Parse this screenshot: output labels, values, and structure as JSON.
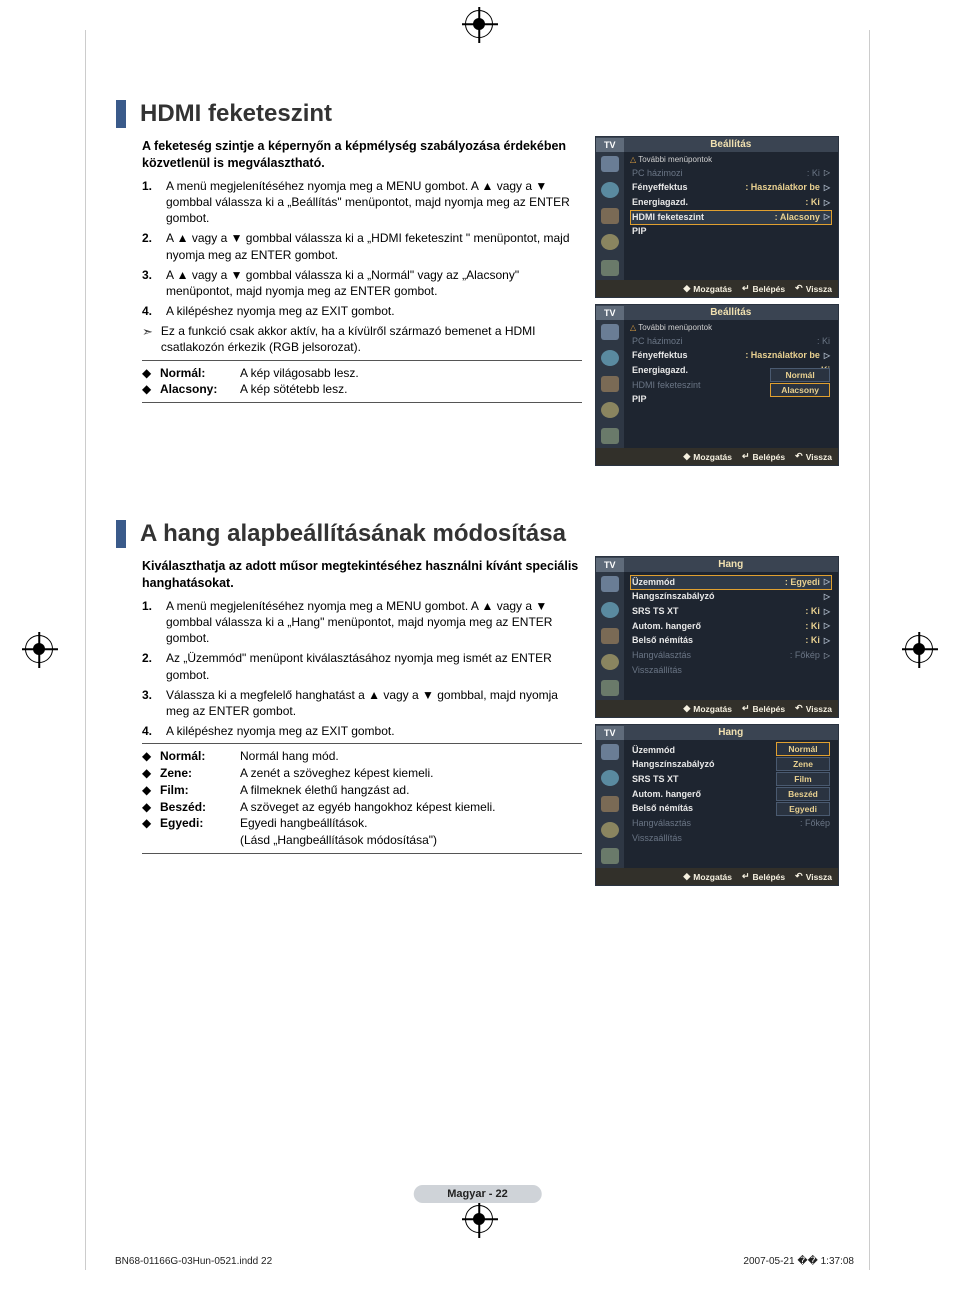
{
  "section1": {
    "title": "HDMI feketeszint",
    "intro": "A feketeség szintje a képernyőn a képmélység szabályozása érdekében közvetlenül is megválasztható.",
    "steps": [
      "A menü megjelenítéséhez nyomja meg a MENU gombot. A ▲ vagy a ▼ gombbal válassza ki a „Beállítás\" menüpontot, majd nyomja meg az ENTER gombot.",
      "A ▲ vagy a ▼ gombbal válassza ki a „HDMI feketeszint \" menüpontot, majd nyomja meg az ENTER gombot.",
      "A ▲ vagy a ▼ gombbal válassza ki a „Normál\" vagy az „Alacsony\" menüpontot, majd nyomja meg az ENTER gombot.",
      "A kilépéshez nyomja meg az EXIT gombot."
    ],
    "note": "Ez a funkció csak akkor aktív, ha a kívülről származó bemenet a HDMI csatlakozón érkezik (RGB jelsorozat).",
    "box": [
      {
        "label": "Normál:",
        "text": "A kép világosabb lesz."
      },
      {
        "label": "Alacsony:",
        "text": "A kép sötétebb lesz."
      }
    ]
  },
  "section2": {
    "title": "A hang alapbeállításának módosítása",
    "intro": "Kiválaszthatja az adott műsor megtekintéséhez használni kívánt speciális hanghatásokat.",
    "steps": [
      "A menü megjelenítéséhez nyomja meg a MENU gombot. A ▲ vagy a ▼ gombbal válassza ki a „Hang\" menüpontot, majd nyomja meg az ENTER gombot.",
      "Az „Üzemmód\" menüpont kiválasztásához nyomja meg ismét az ENTER gombot.",
      "Válassza ki a megfelelő hanghatást a ▲ vagy a ▼ gombbal, majd nyomja meg az ENTER gombot.",
      "A kilépéshez nyomja meg az EXIT gombot."
    ],
    "box": [
      {
        "label": "Normál:",
        "text": "Normál hang mód."
      },
      {
        "label": "Zene:",
        "text": "A zenét a szöveghez képest kiemeli."
      },
      {
        "label": "Film:",
        "text": "A filmeknek élethű hangzást ad."
      },
      {
        "label": "Beszéd:",
        "text": "A szöveget az egyéb hangokhoz képest kiemeli."
      },
      {
        "label": "Egyedi:",
        "text": "Egyedi hangbeállítások."
      }
    ],
    "box_extra": "(Lásd „Hangbeállítások módosítása\")"
  },
  "osd": {
    "tv": "TV",
    "setup_title": "Beállítás",
    "sound_title": "Hang",
    "more": "További menüpontok",
    "setup_items1": [
      {
        "k": "PC házimozi",
        "v": ": Ki",
        "dim": true,
        "tri": true
      },
      {
        "k": "Fényeffektus",
        "v": ": Használatkor be",
        "tri": true
      },
      {
        "k": "Energiagazd.",
        "v": ": Ki",
        "tri": true
      },
      {
        "k": "HDMI feketeszint",
        "v": ": Alacsony",
        "sel": true,
        "tri": true
      },
      {
        "k": "PIP",
        "v": ""
      }
    ],
    "setup_items2": [
      {
        "k": "PC házimozi",
        "v": ": Ki",
        "dim": true
      },
      {
        "k": "Fényeffektus",
        "v": ": Használatkor be",
        "tri": true
      },
      {
        "k": "Energiagazd.",
        "v": ": Ki"
      },
      {
        "k": "HDMI feketeszint",
        "v": ":",
        "dim": true
      },
      {
        "k": "PIP",
        "v": ""
      }
    ],
    "setup_opts2": [
      "Normál",
      "Alacsony"
    ],
    "setup_opts2_sel": 1,
    "sound_items1": [
      {
        "k": "Üzemmód",
        "v": ": Egyedi",
        "sel": true,
        "tri": true
      },
      {
        "k": "Hangszínszabályzó",
        "v": "",
        "tri": true
      },
      {
        "k": "SRS TS XT",
        "v": ": Ki",
        "tri": true
      },
      {
        "k": "Autom. hangerő",
        "v": ": Ki",
        "tri": true
      },
      {
        "k": "Belső némítás",
        "v": ": Ki",
        "tri": true
      },
      {
        "k": "Hangválasztás",
        "v": ": Főkép",
        "dim": true,
        "tri": true
      },
      {
        "k": "Visszaállítás",
        "v": "",
        "dim": true
      }
    ],
    "sound_items2": [
      {
        "k": "Üzemmód",
        "v": ":"
      },
      {
        "k": "Hangszínszabályzó",
        "v": ""
      },
      {
        "k": "SRS TS XT",
        "v": ":"
      },
      {
        "k": "Autom. hangerő",
        "v": ":"
      },
      {
        "k": "Belső némítás",
        "v": ": Ki"
      },
      {
        "k": "Hangválasztás",
        "v": ": Főkép",
        "dim": true
      },
      {
        "k": "Visszaállítás",
        "v": "",
        "dim": true
      }
    ],
    "sound_opts2": [
      "Normál",
      "Zene",
      "Film",
      "Beszéd",
      "Egyedi"
    ],
    "sound_opts2_sel": 0,
    "footer": {
      "move": "Mozgatás",
      "enter": "Belépés",
      "return": "Vissza"
    }
  },
  "footer": {
    "page": "Magyar - 22"
  },
  "print": {
    "file": "BN68-01166G-03Hun-0521.indd   22",
    "stamp": "2007-05-21   �� 1:37:08"
  }
}
